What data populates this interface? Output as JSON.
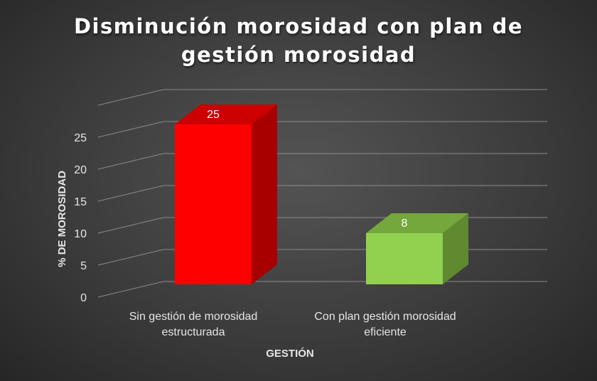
{
  "chart_data": {
    "type": "bar",
    "title_lines": [
      "Disminución morosidad con plan de",
      "gestión morosidad"
    ],
    "xlabel": "GESTIÓN",
    "ylabel": "% DE MOROSIDAD",
    "categories": [
      [
        "Sin gestión de morosidad",
        "estructurada"
      ],
      [
        "Con plan gestión morosidad",
        "eficiente"
      ]
    ],
    "values": [
      25,
      8
    ],
    "data_labels": [
      "25",
      "8"
    ],
    "yticks": [
      "0",
      "5",
      "10",
      "15",
      "20",
      "25"
    ],
    "ylim": [
      0,
      30
    ],
    "grid": true,
    "colors": {
      "bar1_front": "#ff0000",
      "bar1_side": "#a80000",
      "bar1_top": "#cc0000",
      "bar2_front": "#92d050",
      "bar2_side": "#5f8a30",
      "bar2_top": "#74a83c",
      "grid": "#8a8a8a",
      "text": "#ffffff",
      "axis_text": "#e6e6e6"
    }
  }
}
